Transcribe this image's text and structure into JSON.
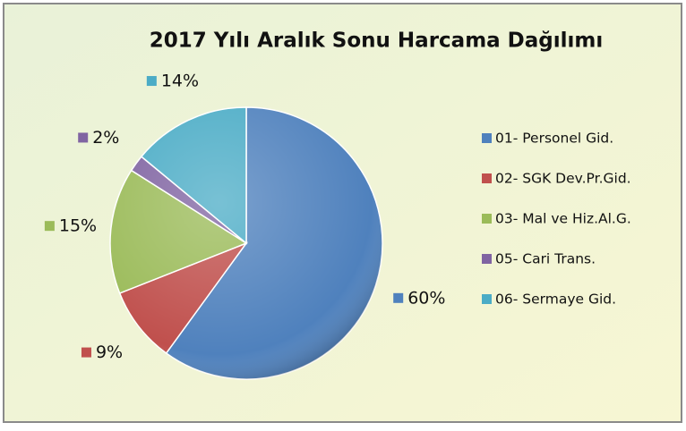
{
  "chart_data": {
    "type": "pie",
    "title": "2017 Yılı Aralık Sonu Harcama Dağılımı",
    "categories": [
      "01- Personel Gid.",
      "02- SGK Dev.Pr.Gid.",
      "03- Mal ve Hiz.Al.G.",
      "05- Cari Trans.",
      "06- Sermaye Gid."
    ],
    "values": [
      60,
      9,
      15,
      2,
      14
    ],
    "value_labels": [
      "60%",
      "9%",
      "15%",
      "2%",
      "14%"
    ],
    "colors": [
      "#4f81bd",
      "#c0504d",
      "#9bbb59",
      "#8064a2",
      "#4bacc6"
    ],
    "legend": "right"
  }
}
